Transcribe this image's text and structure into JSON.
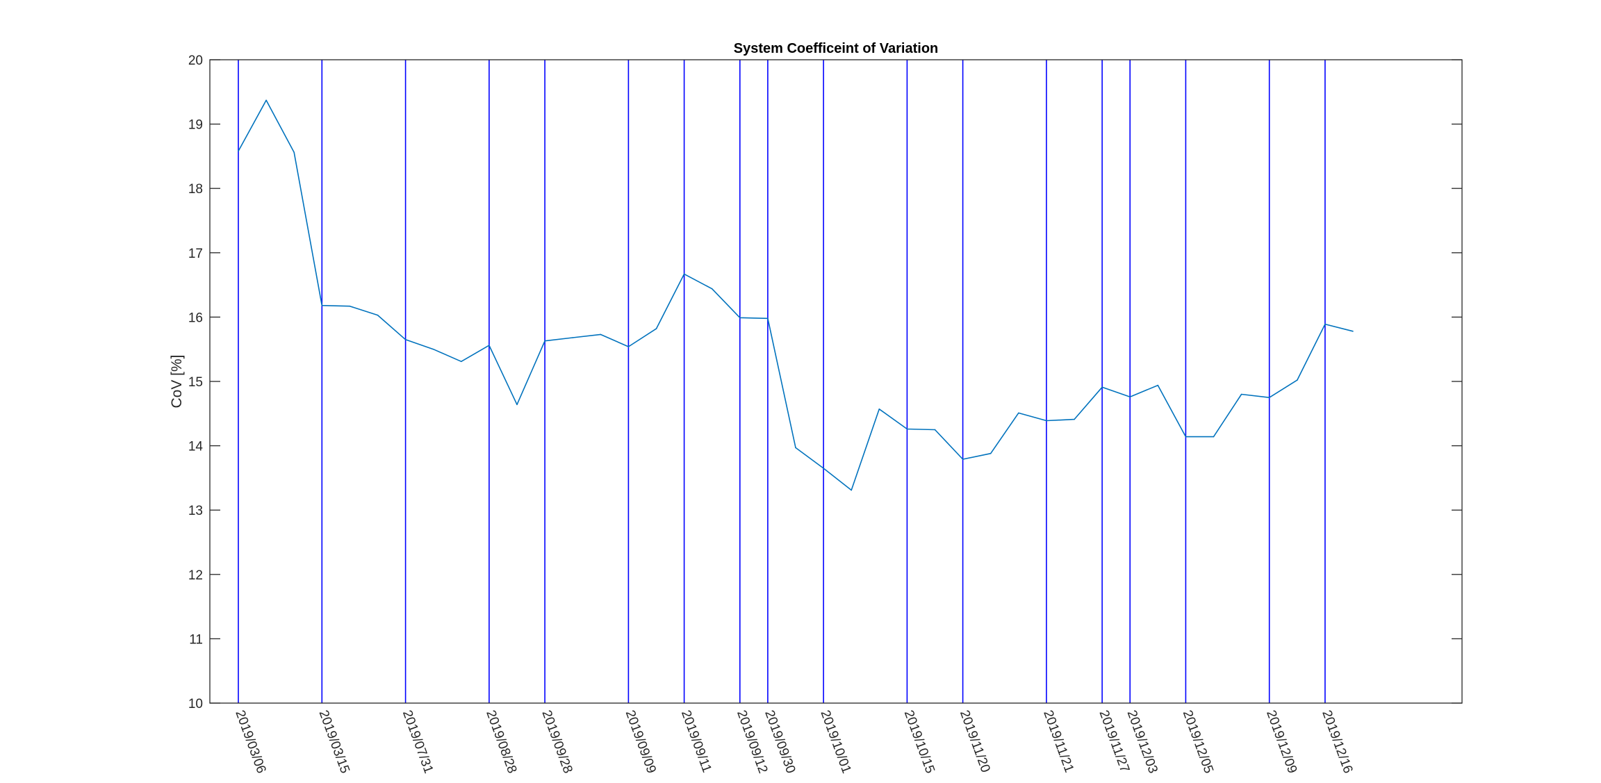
{
  "chart_data": {
    "type": "line",
    "title": "System Coefficeint of Variation",
    "xlabel": "",
    "ylabel": "CoV [%]",
    "ylim": [
      10,
      20
    ],
    "xlim": [
      0,
      45
    ],
    "yticks": [
      10,
      11,
      12,
      13,
      14,
      15,
      16,
      17,
      18,
      19,
      20
    ],
    "grid": false,
    "series": [
      {
        "color": "#0072BD",
        "values": [
          18.58,
          19.37,
          18.56,
          16.18,
          16.17,
          16.03,
          15.65,
          15.5,
          15.31,
          15.56,
          14.64,
          15.63,
          15.68,
          15.73,
          15.54,
          15.82,
          16.67,
          16.44,
          15.99,
          15.98,
          13.97,
          13.65,
          13.31,
          14.57,
          14.26,
          14.25,
          13.79,
          13.88,
          14.51,
          14.39,
          14.41,
          14.91,
          14.76,
          14.94,
          14.14,
          14.14,
          14.8,
          14.75,
          15.02,
          15.89,
          15.78
        ]
      }
    ],
    "markers": {
      "color": "#0000FF",
      "positions": [
        0,
        3,
        6,
        9,
        11,
        14,
        16,
        18,
        19,
        21,
        24,
        26,
        29,
        31,
        32,
        34,
        37,
        39
      ],
      "labels": [
        "2019/03/06",
        "2019/03/15",
        "2019/07/31",
        "2019/08/28",
        "2019/09/28",
        "2019/09/09",
        "2019/09/11",
        "2019/09/12",
        "2019/09/30",
        "2019/10/01",
        "2019/10/15",
        "2019/11/20",
        "2019/11/21",
        "2019/11/27",
        "2019/12/03",
        "2019/12/05",
        "2019/12/09",
        "2019/12/16"
      ]
    }
  }
}
